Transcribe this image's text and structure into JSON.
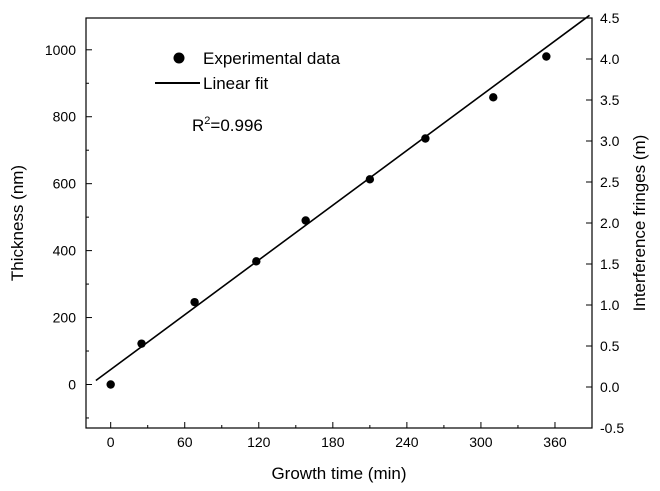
{
  "chart_data": {
    "type": "scatter",
    "xlabel": "Growth time (min)",
    "ylabel": "Thickness (nm)",
    "y2label": "Interference fringes (m)",
    "xlim": [
      -20,
      390
    ],
    "ylim": [
      -130,
      1095
    ],
    "y2lim": [
      -0.5,
      4.5
    ],
    "xticks": [
      0,
      60,
      120,
      180,
      240,
      300,
      360
    ],
    "yticks": [
      0,
      200,
      400,
      600,
      800,
      1000
    ],
    "y2ticks": [
      -0.5,
      0.0,
      0.5,
      1.0,
      1.5,
      2.0,
      2.5,
      3.0,
      3.5,
      4.0,
      4.5
    ],
    "y2tick_labels": [
      "-0.5",
      "0.0",
      "0.5",
      "1.0",
      "1.5",
      "2.0",
      "2.5",
      "3.0",
      "3.5",
      "4.0",
      "4.5"
    ],
    "series": [
      {
        "name": "Experimental data",
        "marker": "circle",
        "color": "#000000",
        "x": [
          0,
          25,
          68,
          118,
          158,
          210,
          255,
          310,
          353
        ],
        "y": [
          0,
          122,
          246,
          368,
          490,
          613,
          735,
          858,
          980
        ]
      },
      {
        "name": "Linear fit",
        "line": true,
        "color": "#000000",
        "x": [
          -12,
          388
        ],
        "y": [
          12,
          1103
        ]
      }
    ],
    "annotation": {
      "base": "R",
      "sup": "2",
      "rest": "=0.996"
    },
    "legend_position": "top-left",
    "grid": false
  }
}
